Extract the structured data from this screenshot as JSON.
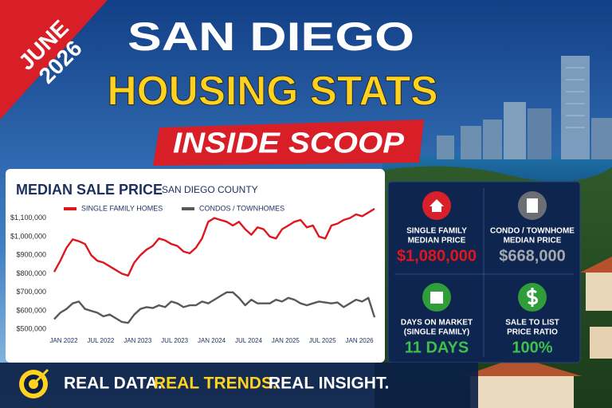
{
  "banner": {
    "lines": [
      "JUNE",
      "2026"
    ]
  },
  "header": {
    "title_lines": [
      "SAN DIEGO",
      "HOUSING STATS"
    ],
    "tagline": "INSIDE SCOOP"
  },
  "chart_data": {
    "type": "line",
    "title": "MEDIAN SALE PRICE",
    "subtitle": "SAN DIEGO COUNTY",
    "categories": [
      "JAN 2022",
      null,
      null,
      null,
      null,
      null,
      "JUL 2022",
      null,
      null,
      null,
      null,
      null,
      "JAN 2023",
      null,
      null,
      null,
      null,
      null,
      "JUL 2023",
      null,
      null,
      null,
      null,
      null,
      "JAN 2024",
      null,
      null,
      null,
      null,
      null,
      "JUL 2024",
      null,
      null,
      null,
      null,
      null,
      "JAN 2025",
      null,
      null,
      null,
      null,
      null,
      "JUL 2025",
      null,
      null,
      null,
      null,
      null,
      "JAN 2026",
      null,
      null,
      null,
      null
    ],
    "series": [
      {
        "name": "SINGLE FAMILY HOMES",
        "color": "#e0161f",
        "values": [
          810000,
          870000,
          940000,
          985000,
          975000,
          960000,
          900000,
          870000,
          860000,
          840000,
          820000,
          800000,
          790000,
          860000,
          900000,
          930000,
          950000,
          990000,
          980000,
          960000,
          950000,
          920000,
          910000,
          940000,
          990000,
          1080000,
          1100000,
          1090000,
          1080000,
          1060000,
          1080000,
          1040000,
          1010000,
          1050000,
          1040000,
          1000000,
          990000,
          1040000,
          1060000,
          1080000,
          1090000,
          1050000,
          1060000,
          1000000,
          990000,
          1060000,
          1070000,
          1090000,
          1100000,
          1120000,
          1110000,
          1130000,
          1150000
        ]
      },
      {
        "name": "CONDOS / TOWNHOMES",
        "color": "#55585c",
        "values": [
          555000,
          590000,
          610000,
          640000,
          650000,
          610000,
          600000,
          590000,
          570000,
          580000,
          560000,
          540000,
          535000,
          580000,
          610000,
          620000,
          615000,
          630000,
          620000,
          650000,
          640000,
          620000,
          630000,
          630000,
          650000,
          640000,
          660000,
          680000,
          700000,
          700000,
          670000,
          630000,
          660000,
          640000,
          640000,
          640000,
          660000,
          650000,
          670000,
          660000,
          640000,
          630000,
          640000,
          650000,
          645000,
          640000,
          645000,
          620000,
          640000,
          660000,
          650000,
          670000,
          565000
        ]
      }
    ],
    "ylim": [
      480000,
      1150000
    ],
    "yticks": [
      {
        "value": 500000,
        "label": "$500,000"
      },
      {
        "value": 600000,
        "label": "$600,000"
      },
      {
        "value": 700000,
        "label": "$700,000"
      },
      {
        "value": 800000,
        "label": "$800,000"
      },
      {
        "value": 900000,
        "label": "$900,000"
      },
      {
        "value": 1000000,
        "label": "$1,000,000"
      },
      {
        "value": 1100000,
        "label": "$1,100,000"
      }
    ],
    "grid": false
  },
  "stats": [
    {
      "label": [
        "SINGLE FAMILY",
        "MEDIAN PRICE"
      ],
      "value": "$1,080,000",
      "color": "#e0161f",
      "icon_color": "#d8202a"
    },
    {
      "label": [
        "CONDO / TOWNHOME",
        "MEDIAN PRICE"
      ],
      "value": "$668,000",
      "color": "#a3a8ae",
      "icon_color": "#6b6f75"
    },
    {
      "label": [
        "DAYS ON MARKET",
        "(SINGLE FAMILY)"
      ],
      "value": "11 DAYS",
      "color": "#3fbf4c",
      "icon_color": "#2f9e3a"
    },
    {
      "label": [
        "SALE TO LIST",
        "PRICE RATIO"
      ],
      "value": "100%",
      "color": "#3fbf4c",
      "icon_color": "#2f9e3a"
    }
  ],
  "footer": {
    "parts": [
      "REAL DATA.",
      "REAL TRENDS.",
      "REAL INSIGHT."
    ]
  }
}
